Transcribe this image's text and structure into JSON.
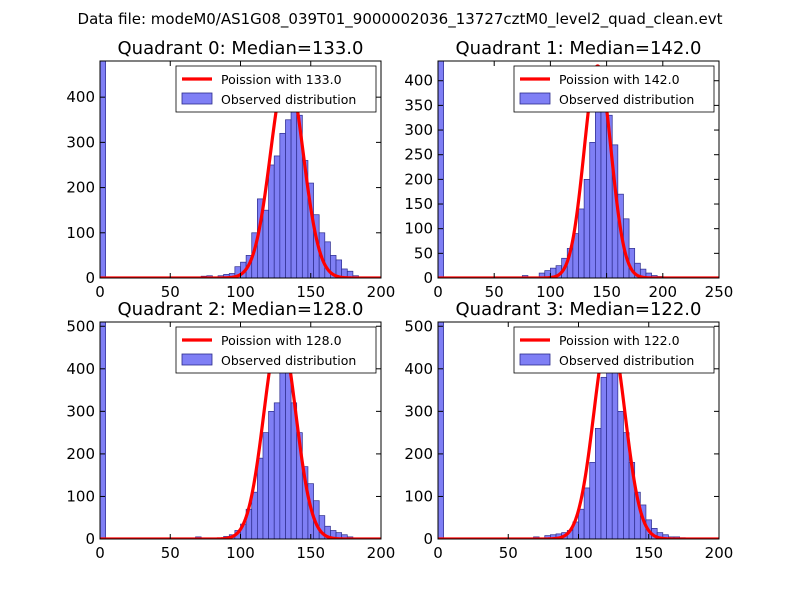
{
  "figure_title": "Data file: modeM0/AS1G08_039T01_9000002036_13727cztM0_level2_quad_clean.evt",
  "colors": {
    "bar_fill": "#7f7ff5",
    "bar_edge": "#2b2b8c",
    "curve": "#ff0000",
    "axis": "#000000"
  },
  "chart_data": [
    {
      "type": "bar+line",
      "title": "Quadrant 0: Median=133.0",
      "legend": {
        "line": "Poission with 133.0",
        "bars": "Observed distribution",
        "placement": "top-right"
      },
      "xlim": [
        0,
        200
      ],
      "ylim": [
        0,
        480
      ],
      "xticks": [
        0,
        50,
        100,
        150,
        200
      ],
      "yticks": [
        0,
        100,
        200,
        300,
        400
      ],
      "bin_width": 4,
      "bars": [
        [
          0,
          480
        ],
        [
          72,
          4
        ],
        [
          76,
          5
        ],
        [
          84,
          5
        ],
        [
          88,
          8
        ],
        [
          92,
          10
        ],
        [
          96,
          25
        ],
        [
          100,
          35
        ],
        [
          104,
          50
        ],
        [
          108,
          100
        ],
        [
          112,
          175
        ],
        [
          116,
          150
        ],
        [
          120,
          250
        ],
        [
          124,
          270
        ],
        [
          128,
          320
        ],
        [
          132,
          350
        ],
        [
          136,
          400
        ],
        [
          140,
          360
        ],
        [
          144,
          260
        ],
        [
          148,
          210
        ],
        [
          152,
          140
        ],
        [
          156,
          100
        ],
        [
          160,
          80
        ],
        [
          164,
          50
        ],
        [
          168,
          40
        ],
        [
          172,
          20
        ],
        [
          176,
          15
        ],
        [
          180,
          5
        ]
      ],
      "curve": {
        "mean": 133.0,
        "amplitude": 460
      }
    },
    {
      "type": "bar+line",
      "title": "Quadrant 1: Median=142.0",
      "legend": {
        "line": "Poission with 142.0",
        "bars": "Observed distribution",
        "placement": "top-right"
      },
      "xlim": [
        0,
        250
      ],
      "ylim": [
        0,
        440
      ],
      "xticks": [
        0,
        50,
        100,
        150,
        200,
        250
      ],
      "yticks": [
        0,
        50,
        100,
        150,
        200,
        250,
        300,
        350,
        400
      ],
      "bin_width": 5,
      "bars": [
        [
          0,
          440
        ],
        [
          75,
          5
        ],
        [
          90,
          10
        ],
        [
          95,
          15
        ],
        [
          100,
          20
        ],
        [
          105,
          25
        ],
        [
          110,
          40
        ],
        [
          115,
          60
        ],
        [
          120,
          90
        ],
        [
          125,
          140
        ],
        [
          130,
          200
        ],
        [
          135,
          275
        ],
        [
          140,
          380
        ],
        [
          145,
          410
        ],
        [
          150,
          330
        ],
        [
          155,
          270
        ],
        [
          160,
          170
        ],
        [
          165,
          120
        ],
        [
          170,
          60
        ],
        [
          175,
          30
        ],
        [
          180,
          18
        ],
        [
          185,
          10
        ],
        [
          190,
          5
        ],
        [
          195,
          3
        ]
      ],
      "curve": {
        "mean": 142.0,
        "amplitude": 430
      }
    },
    {
      "type": "bar+line",
      "title": "Quadrant 2: Median=128.0",
      "legend": {
        "line": "Poission with 128.0",
        "bars": "Observed distribution",
        "placement": "top-right"
      },
      "xlim": [
        0,
        200
      ],
      "ylim": [
        0,
        510
      ],
      "xticks": [
        0,
        50,
        100,
        150,
        200
      ],
      "yticks": [
        0,
        100,
        200,
        300,
        400,
        500
      ],
      "bin_width": 4,
      "bars": [
        [
          0,
          510
        ],
        [
          68,
          5
        ],
        [
          88,
          6
        ],
        [
          92,
          10
        ],
        [
          96,
          20
        ],
        [
          100,
          35
        ],
        [
          104,
          70
        ],
        [
          108,
          110
        ],
        [
          112,
          190
        ],
        [
          116,
          250
        ],
        [
          120,
          300
        ],
        [
          124,
          320
        ],
        [
          128,
          400
        ],
        [
          132,
          420
        ],
        [
          136,
          320
        ],
        [
          140,
          250
        ],
        [
          144,
          170
        ],
        [
          148,
          130
        ],
        [
          152,
          90
        ],
        [
          156,
          55
        ],
        [
          160,
          30
        ],
        [
          164,
          20
        ],
        [
          168,
          15
        ],
        [
          172,
          10
        ],
        [
          176,
          5
        ]
      ],
      "curve": {
        "mean": 128.0,
        "amplitude": 490
      }
    },
    {
      "type": "bar+line",
      "title": "Quadrant 3: Median=122.0",
      "legend": {
        "line": "Poission with 122.0",
        "bars": "Observed distribution",
        "placement": "top-right"
      },
      "xlim": [
        0,
        200
      ],
      "ylim": [
        0,
        510
      ],
      "xticks": [
        0,
        50,
        100,
        150,
        200
      ],
      "yticks": [
        0,
        100,
        200,
        300,
        400,
        500
      ],
      "bin_width": 4,
      "bars": [
        [
          0,
          510
        ],
        [
          68,
          5
        ],
        [
          76,
          8
        ],
        [
          80,
          10
        ],
        [
          84,
          12
        ],
        [
          88,
          15
        ],
        [
          92,
          20
        ],
        [
          96,
          40
        ],
        [
          100,
          70
        ],
        [
          104,
          120
        ],
        [
          108,
          180
        ],
        [
          112,
          260
        ],
        [
          116,
          380
        ],
        [
          120,
          410
        ],
        [
          124,
          400
        ],
        [
          128,
          300
        ],
        [
          132,
          250
        ],
        [
          136,
          180
        ],
        [
          140,
          110
        ],
        [
          144,
          80
        ],
        [
          148,
          45
        ],
        [
          152,
          25
        ],
        [
          156,
          15
        ],
        [
          160,
          10
        ],
        [
          164,
          5
        ],
        [
          168,
          5
        ],
        [
          172,
          3
        ],
        [
          176,
          2
        ]
      ],
      "curve": {
        "mean": 122.0,
        "amplitude": 490
      }
    }
  ]
}
